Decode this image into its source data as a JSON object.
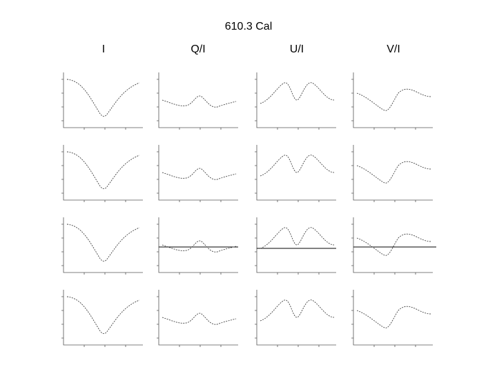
{
  "title": "610.3 Cal",
  "columns": [
    "I",
    "Q/I",
    "U/I",
    "V/I"
  ]
}
